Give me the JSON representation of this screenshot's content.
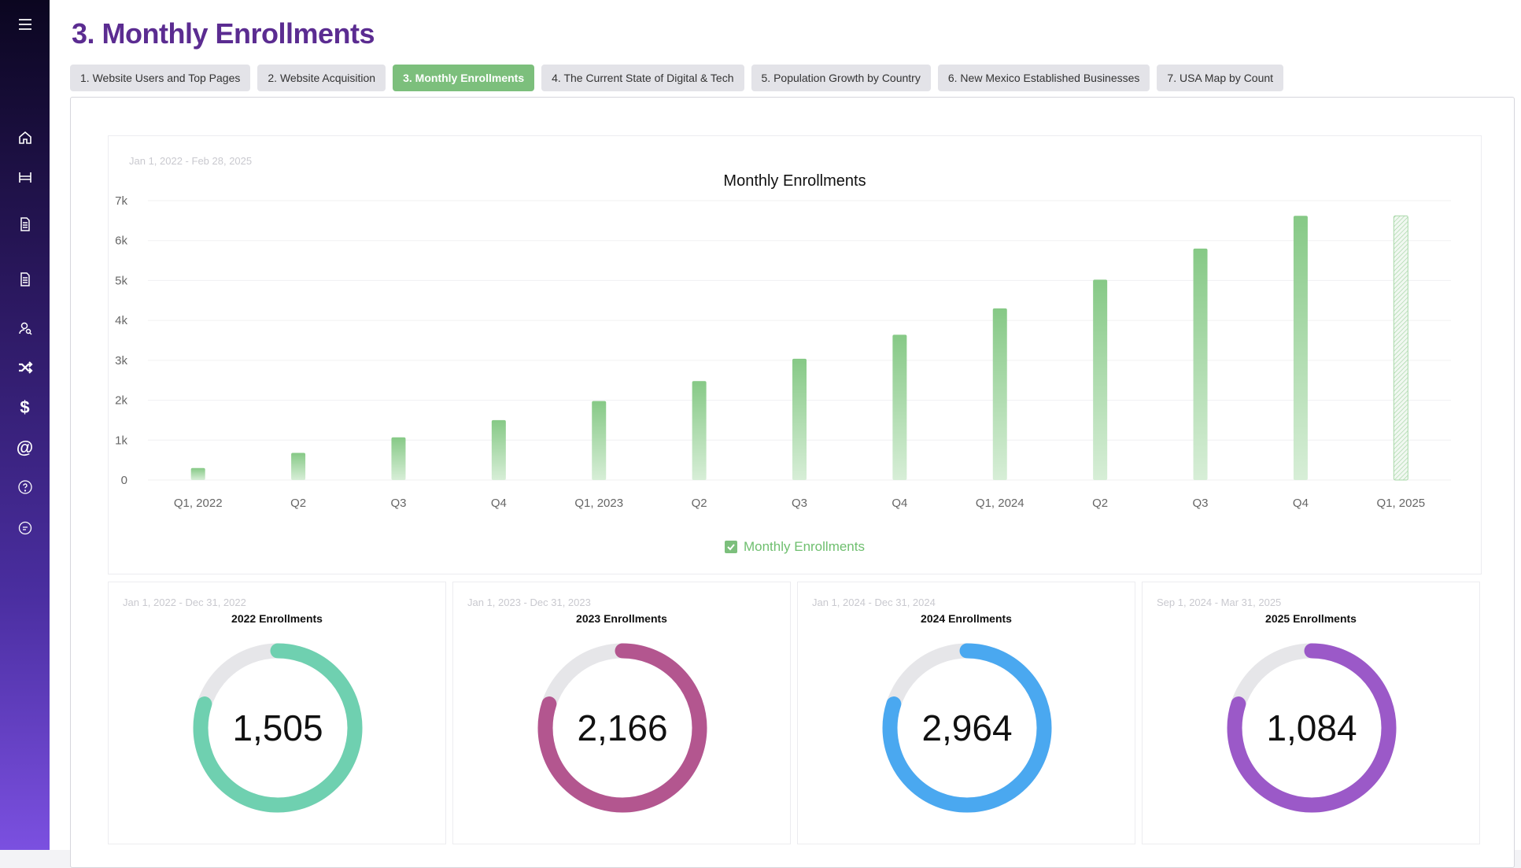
{
  "page": {
    "title": "3. Monthly Enrollments"
  },
  "sidebar": {
    "icons": [
      "menu-icon",
      "home-icon",
      "bed-icon",
      "document-icon",
      "document-icon",
      "user-search-icon",
      "shuffle-icon",
      "dollar-icon",
      "at-icon",
      "help-icon",
      "chat-icon"
    ]
  },
  "tabs": [
    {
      "label": "1. Website Users and Top Pages",
      "active": false
    },
    {
      "label": "2. Website Acquisition",
      "active": false
    },
    {
      "label": "3. Monthly Enrollments",
      "active": true
    },
    {
      "label": "4. The Current State of Digital & Tech",
      "active": false
    },
    {
      "label": "5. Population Growth by Country",
      "active": false
    },
    {
      "label": "6. New Mexico Established Businesses",
      "active": false
    },
    {
      "label": "7. USA Map by Count",
      "active": false
    }
  ],
  "bar_chart": {
    "date_range": "Jan 1, 2022 - Feb 28, 2025",
    "legend_label": "Monthly Enrollments"
  },
  "chart_data": [
    {
      "type": "bar",
      "title": "Monthly Enrollments",
      "categories": [
        "Q1, 2022",
        "Q2",
        "Q3",
        "Q4",
        "Q1, 2023",
        "Q2",
        "Q3",
        "Q4",
        "Q1, 2024",
        "Q2",
        "Q3",
        "Q4",
        "Q1, 2025"
      ],
      "series": [
        {
          "name": "Monthly Enrollments",
          "values": [
            300,
            680,
            1070,
            1500,
            1980,
            2480,
            3040,
            3640,
            4300,
            5020,
            5800,
            6620,
            6620
          ],
          "partial_last": true
        }
      ],
      "ylim": [
        0,
        7000
      ],
      "yticks": [
        "0",
        "1k",
        "2k",
        "3k",
        "4k",
        "5k",
        "6k",
        "7k"
      ],
      "grid": true,
      "legend": "bottom-center",
      "color": "#7cbf7c"
    },
    {
      "type": "pie",
      "title": "2022 Enrollments",
      "date_range": "Jan 1, 2022 - Dec 31, 2022",
      "value": 1505,
      "display": "1,505",
      "fraction": 0.8,
      "color": "#6fd0b0"
    },
    {
      "type": "pie",
      "title": "2023 Enrollments",
      "date_range": "Jan 1, 2023 - Dec 31, 2023",
      "value": 2166,
      "display": "2,166",
      "fraction": 0.8,
      "color": "#b3568f"
    },
    {
      "type": "pie",
      "title": "2024 Enrollments",
      "date_range": "Jan 1, 2024 - Dec 31, 2024",
      "value": 2964,
      "display": "2,964",
      "fraction": 0.8,
      "color": "#4aa8f0"
    },
    {
      "type": "pie",
      "title": "2025 Enrollments",
      "date_range": "Sep 1, 2024 - Mar 31, 2025",
      "value": 1084,
      "display": "1,084",
      "fraction": 0.8,
      "color": "#9b59c8"
    }
  ],
  "colors": {
    "brand": "#5b2c91",
    "active_tab": "#7cbf7c",
    "track": "#e6e6e9"
  }
}
